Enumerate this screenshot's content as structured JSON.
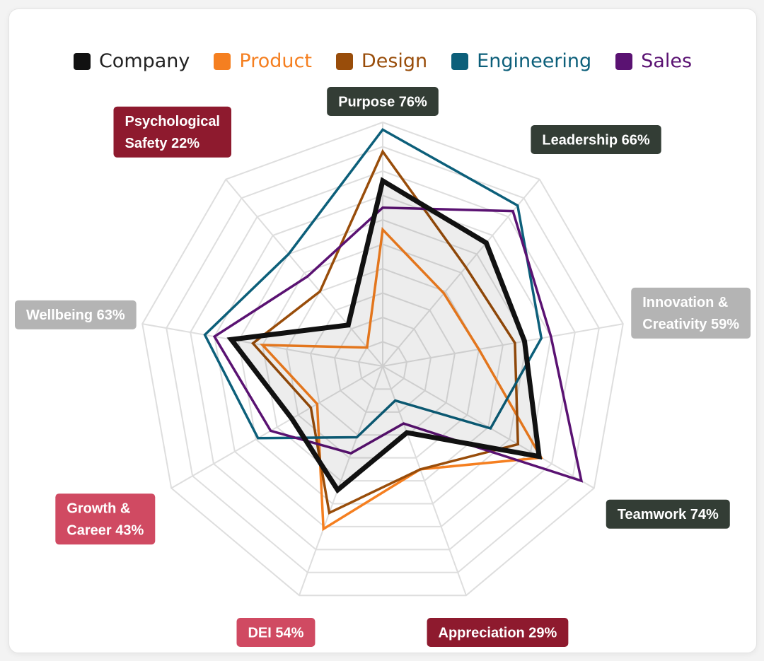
{
  "chart_data": {
    "type": "radar",
    "categories": [
      "Purpose",
      "Leadership",
      "Innovation & Creativity",
      "Teamwork",
      "Appreciation",
      "DEI",
      "Growth & Career",
      "Wellbeing",
      "Psychological Safety"
    ],
    "category_labels": [
      [
        "Purpose 76%"
      ],
      [
        "Leadership 66%"
      ],
      [
        "Innovation &",
        "Creativity 59%"
      ],
      [
        "Teamwork 74%"
      ],
      [
        "Appreciation 29%"
      ],
      [
        "DEI 54%"
      ],
      [
        "Growth &",
        "Career 43%"
      ],
      [
        "Wellbeing 63%"
      ],
      [
        "Psychological",
        "Safety 22%"
      ]
    ],
    "label_colors": [
      "#333d35",
      "#333d35",
      "#b4b4b4",
      "#333d35",
      "#8e1a2e",
      "#d04a62",
      "#d04a62",
      "#b4b4b4",
      "#8e1a2e"
    ],
    "rlim": [
      0,
      100
    ],
    "grid": true,
    "grid_levels": 10,
    "legend_position": "top",
    "series": [
      {
        "name": "Company",
        "color": "#111111",
        "values": [
          76,
          66,
          59,
          74,
          29,
          54,
          43,
          63,
          22
        ]
      },
      {
        "name": "Product",
        "color": "#f57f20",
        "values": [
          56,
          39,
          40,
          75,
          45,
          71,
          31,
          50,
          10
        ]
      },
      {
        "name": "Design",
        "color": "#994d0a",
        "values": [
          88,
          53,
          55,
          64,
          45,
          64,
          34,
          54,
          40
        ]
      },
      {
        "name": "Engineering",
        "color": "#0c5f7a",
        "values": [
          97,
          86,
          66,
          51,
          15,
          31,
          59,
          74,
          60
        ]
      },
      {
        "name": "Sales",
        "color": "#5a1272",
        "values": [
          65,
          83,
          70,
          94,
          25,
          38,
          53,
          70,
          48
        ]
      }
    ]
  }
}
